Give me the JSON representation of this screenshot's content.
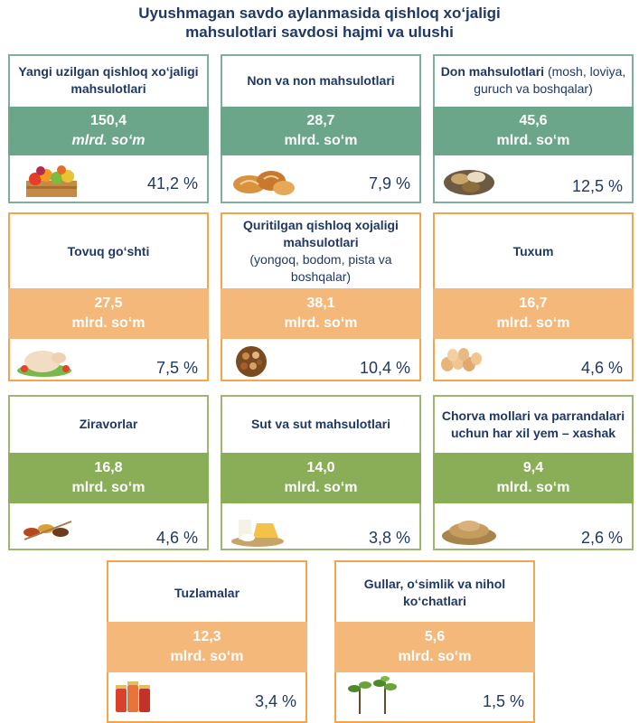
{
  "title_line1": "Uyushmagan savdo aylanmasida qishloq xo‘jaligi",
  "title_line2": "mahsulotlari savdosi hajmi va ulushi",
  "cards": [
    {
      "title": "Yangi uzilgan qishloq xo‘jaligi mahsulotlari",
      "sub": "",
      "value": "150,4",
      "unit": "mlrd. so‘m",
      "percent": "41,2 %",
      "icon": "fruit-crate-icon"
    },
    {
      "title": "Non va non mahsulotlari",
      "sub": "",
      "value": "28,7",
      "unit": "mlrd. so‘m",
      "percent": "7,9 %",
      "icon": "bread-icon"
    },
    {
      "title": "Don mahsulotlari",
      "sub": "(mosh, loviya, guruch va boshqalar)",
      "value": "45,6",
      "unit": "mlrd. so‘m",
      "percent": "12,5 %",
      "icon": "grain-bowls-icon"
    },
    {
      "title": "Tovuq go‘shti",
      "sub": "",
      "value": "27,5",
      "unit": "mlrd. so‘m",
      "percent": "7,5 %",
      "icon": "chicken-icon"
    },
    {
      "title": "Quritilgan qishloq xojaligi mahsulotlari",
      "sub": "(yongoq, bodom, pista va boshqalar)",
      "value": "38,1",
      "unit": "mlrd. so‘m",
      "percent": "10,4 %",
      "icon": "dried-nuts-icon"
    },
    {
      "title": "Tuxum",
      "sub": "",
      "value": "16,7",
      "unit": "mlrd. so‘m",
      "percent": "4,6 %",
      "icon": "eggs-icon"
    },
    {
      "title": "Ziravorlar",
      "sub": "",
      "value": "16,8",
      "unit": "mlrd. so‘m",
      "percent": "4,6 %",
      "icon": "spices-icon"
    },
    {
      "title": "Sut va sut mahsulotlari",
      "sub": "",
      "value": "14,0",
      "unit": "mlrd. so‘m",
      "percent": "3,8 %",
      "icon": "dairy-icon"
    },
    {
      "title": "Chorva mollari va parrandalari uchun har xil yem – xashak",
      "sub": "",
      "value": "9,4",
      "unit": "mlrd. so‘m",
      "percent": "2,6 %",
      "icon": "feed-pile-icon"
    },
    {
      "title": "Tuzlamalar",
      "sub": "",
      "value": "12,3",
      "unit": "mlrd. so‘m",
      "percent": "3,4 %",
      "icon": "pickle-jars-icon"
    },
    {
      "title": "Gullar, o‘simlik va nihol ko‘chatlari",
      "sub": "",
      "value": "5,6",
      "unit": "mlrd. so‘m",
      "percent": "1,5 %",
      "icon": "seedlings-icon"
    }
  ]
}
